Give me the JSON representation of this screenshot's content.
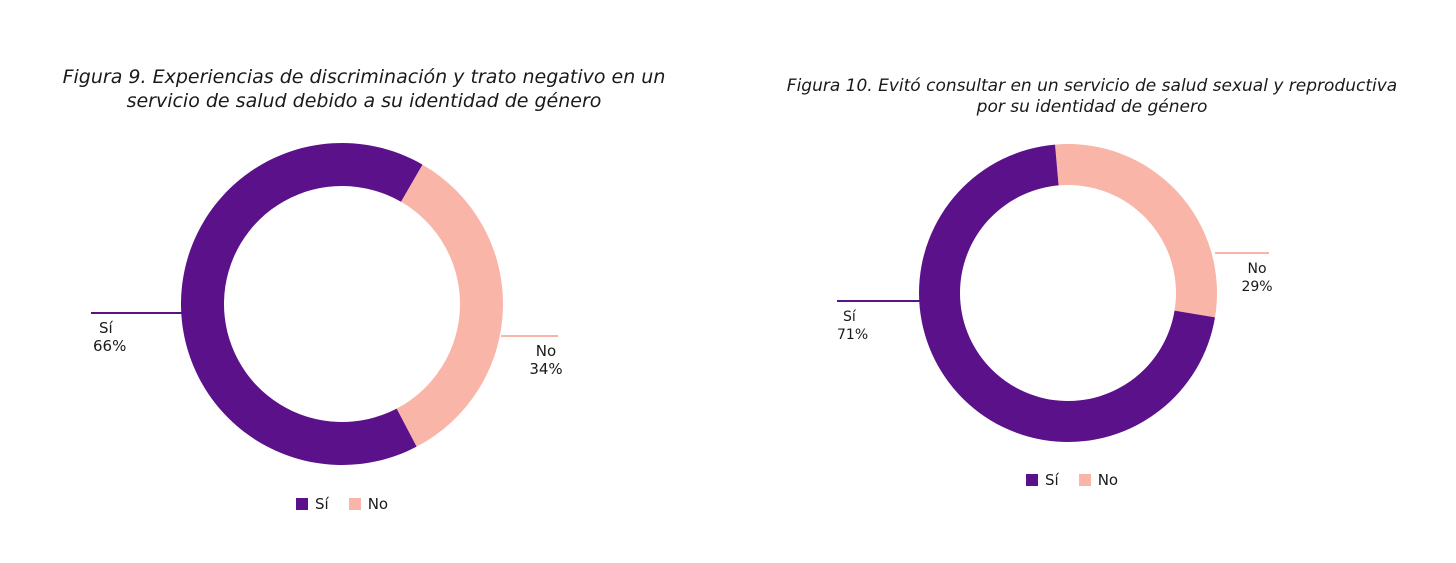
{
  "chart_data": [
    {
      "type": "pie",
      "title_lines": [
        "Figura 9. Experiencias de discriminación y trato negativo en un",
        "servicio de salud debido a su identidad de género"
      ],
      "categories": [
        "Sí",
        "No"
      ],
      "values": [
        66,
        34
      ],
      "value_labels": [
        "66%",
        "34%"
      ],
      "colors": [
        "#5b118a",
        "#f9b5a7"
      ],
      "legend": "bottom"
    },
    {
      "type": "pie",
      "title_lines": [
        "Figura 10. Evitó consultar en un servicio de salud sexual y reproductiva",
        "por su identidad de género"
      ],
      "categories": [
        "Sí",
        "No"
      ],
      "values": [
        71,
        29
      ],
      "value_labels": [
        "71%",
        "29%"
      ],
      "colors": [
        "#5b118a",
        "#f9b5a7"
      ],
      "legend": "bottom"
    }
  ]
}
